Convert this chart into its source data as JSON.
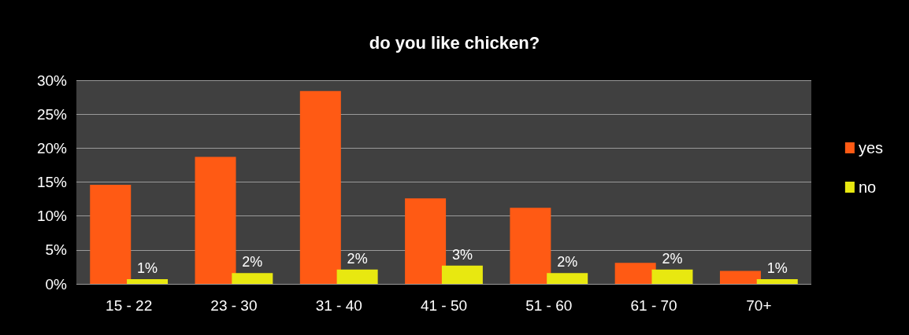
{
  "chart_data": {
    "type": "bar",
    "title": "do you like chicken?",
    "categories": [
      "15 - 22",
      "23 - 30",
      "31 - 40",
      "41 - 50",
      "51 - 60",
      "61 - 70",
      "70+"
    ],
    "series": [
      {
        "name": "yes",
        "color": "#ff5a14",
        "values": [
          14.6,
          18.7,
          28.4,
          12.6,
          11.2,
          3.1,
          1.9
        ]
      },
      {
        "name": "no",
        "color": "#e8e810",
        "values": [
          0.7,
          1.6,
          2.1,
          2.7,
          1.6,
          2.1,
          0.7
        ],
        "value_labels": [
          "1%",
          "2%",
          "2%",
          "3%",
          "2%",
          "2%",
          "1%"
        ]
      }
    ],
    "ylim": [
      0,
      30
    ],
    "yticks": [
      {
        "value": 0,
        "label": "0%"
      },
      {
        "value": 5,
        "label": "5%"
      },
      {
        "value": 10,
        "label": "10%"
      },
      {
        "value": 15,
        "label": "15%"
      },
      {
        "value": 20,
        "label": "20%"
      },
      {
        "value": 25,
        "label": "25%"
      },
      {
        "value": 30,
        "label": "30%"
      }
    ],
    "grid": "y",
    "legend": "right"
  }
}
